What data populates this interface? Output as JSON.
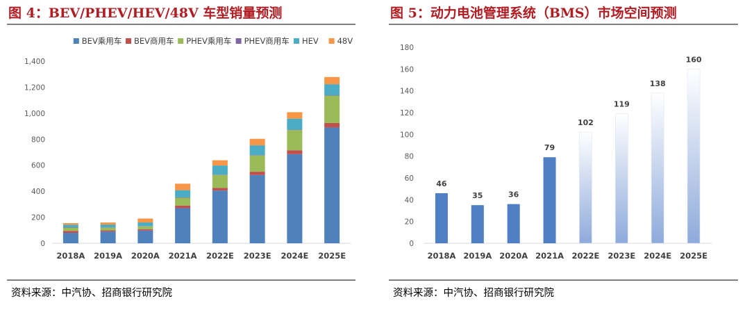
{
  "panel1": {
    "title": "图 4：BEV/PHEV/HEV/48V 车型销量预测",
    "source": "资料来源：中汽协、招商银行研究院"
  },
  "panel2": {
    "title": "图 5：动力电池管理系统（BMS）市场空间预测",
    "source": "资料来源：中汽协、招商银行研究院"
  },
  "chart_data": [
    {
      "type": "bar",
      "stacked": true,
      "title": "图 4：BEV/PHEV/HEV/48V 车型销量预测",
      "categories": [
        "2018A",
        "2019A",
        "2020A",
        "2021A",
        "2022E",
        "2023E",
        "2024E",
        "2025E"
      ],
      "series": [
        {
          "name": "BEV乘用车",
          "color": "#4f81bd",
          "values": [
            80,
            90,
            98,
            270,
            405,
            525,
            685,
            890
          ]
        },
        {
          "name": "BEV商用车",
          "color": "#c0504d",
          "values": [
            15,
            10,
            10,
            20,
            20,
            25,
            30,
            35
          ]
        },
        {
          "name": "PHEV乘用车",
          "color": "#9bbb59",
          "values": [
            25,
            20,
            22,
            60,
            100,
            125,
            155,
            210
          ]
        },
        {
          "name": "PHEV商用车",
          "color": "#8064a2",
          "values": [
            3,
            2,
            2,
            3,
            3,
            3,
            3,
            3
          ]
        },
        {
          "name": "HEV",
          "color": "#4bacc6",
          "values": [
            20,
            22,
            28,
            55,
            70,
            75,
            85,
            85
          ]
        },
        {
          "name": "48V",
          "color": "#f79646",
          "values": [
            12,
            16,
            30,
            50,
            40,
            50,
            50,
            55
          ]
        }
      ],
      "ylim": [
        0,
        1400
      ],
      "yticks": [
        0,
        200,
        400,
        600,
        800,
        "1,000",
        "1,200",
        "1,400"
      ],
      "legend": "top",
      "grid": false
    },
    {
      "type": "bar",
      "title": "图 5：动力电池管理系统（BMS）市场空间预测",
      "categories": [
        "2018A",
        "2019A",
        "2020A",
        "2021A",
        "2022E",
        "2023E",
        "2024E",
        "2025E"
      ],
      "values": [
        46,
        35,
        36,
        79,
        102,
        119,
        138,
        160
      ],
      "data_labels": [
        "46",
        "35",
        "36",
        "79",
        "102",
        "119",
        "138",
        "160"
      ],
      "colors": {
        "actual": "#4f7fc4",
        "estimate_top": "#ffffff",
        "estimate_bottom": "#8eaadb"
      },
      "ylim": [
        0,
        180
      ],
      "yticks": [
        0,
        20,
        40,
        60,
        80,
        100,
        120,
        140,
        160,
        180
      ],
      "grid": false
    }
  ]
}
